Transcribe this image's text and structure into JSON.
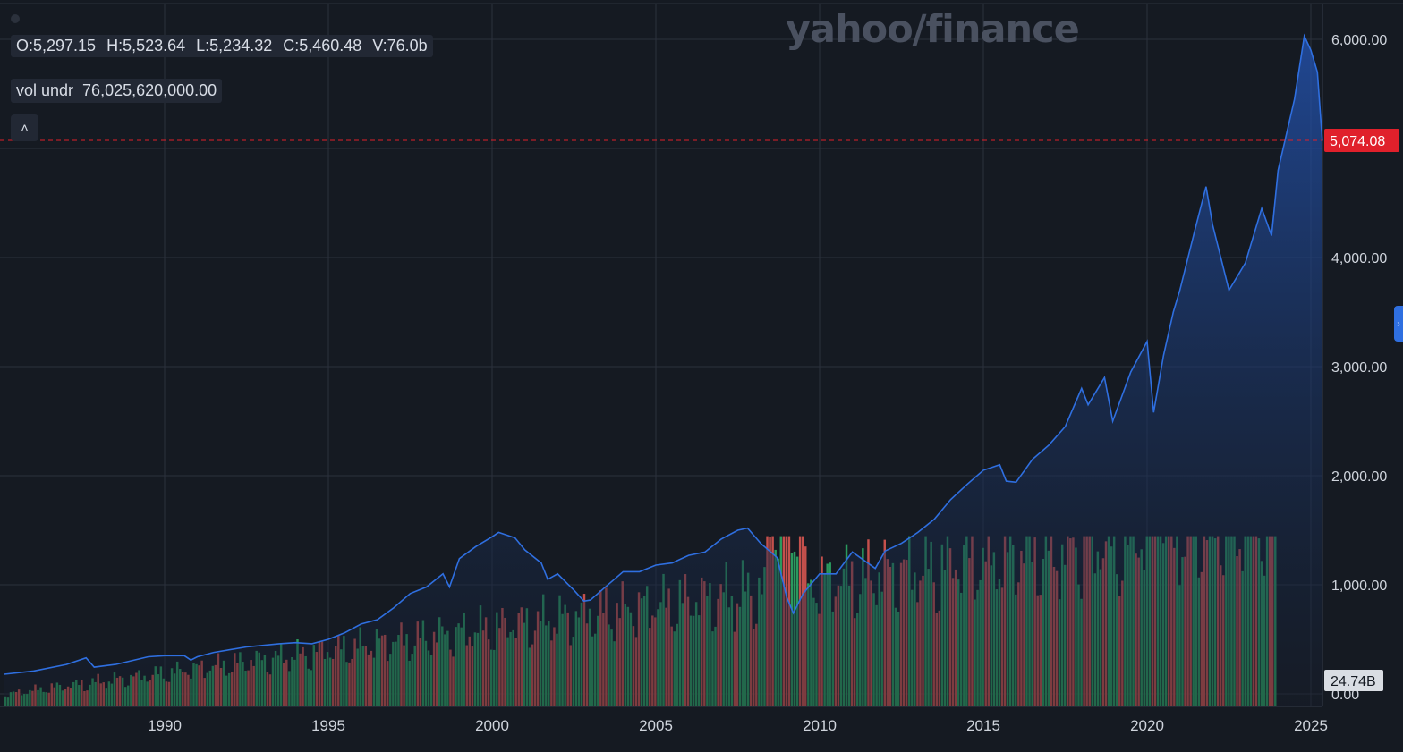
{
  "brand": {
    "logo_text": "yahoo/finance"
  },
  "ohlc": {
    "open": "O:5,297.15",
    "high": "H:5,523.64",
    "low": "L:5,234.32",
    "close": "C:5,460.48",
    "volume": "V:76.0b"
  },
  "volume_under": {
    "label": "vol undr",
    "value": "76,025,620,000.00"
  },
  "controls": {
    "collapse_icon": "chevron-up-icon",
    "collapse_glyph": "˄",
    "side_tab_icon": "chevron-right-icon",
    "side_tab_glyph": "›"
  },
  "colors": {
    "background": "#151a22",
    "line": "#2f6fe0",
    "area": "#1d3c78",
    "vol_up": "#2a9a5e",
    "vol_down": "#c5504c",
    "price_marker": "#e0202b",
    "volume_marker": "#d9dde3",
    "grid": "#2b313c",
    "axis_text": "#cfd4dc"
  },
  "chart_data": {
    "type": "area",
    "title": "",
    "xlabel": "",
    "ylabel": "",
    "x_ticks": [
      "1990",
      "1995",
      "2000",
      "2005",
      "2010",
      "2015",
      "2020",
      "2025"
    ],
    "y_ticks": [
      "0.00",
      "1,000.00",
      "2,000.00",
      "3,000.00",
      "4,000.00",
      "6,000.00"
    ],
    "xlim": [
      1985.1,
      2025.35
    ],
    "ylim": [
      0,
      6150
    ],
    "grid": true,
    "current_price_label": "5,074.08",
    "current_price": 5074.08,
    "volume_axis_label": "24.74B",
    "series": [
      {
        "name": "",
        "x": [
          1985.1,
          1986.0,
          1987.0,
          1987.6,
          1987.85,
          1988.5,
          1989.5,
          1990.0,
          1990.6,
          1990.8,
          1991.0,
          1991.5,
          1992.5,
          1993.5,
          1994.0,
          1994.5,
          1995.0,
          1995.5,
          1996.0,
          1996.5,
          1997.0,
          1997.5,
          1998.0,
          1998.5,
          1998.7,
          1999.0,
          1999.5,
          2000.0,
          2000.2,
          2000.7,
          2001.0,
          2001.5,
          2001.7,
          2002.0,
          2002.5,
          2002.8,
          2003.0,
          2003.5,
          2004.0,
          2004.5,
          2005.0,
          2005.5,
          2006.0,
          2006.5,
          2007.0,
          2007.5,
          2007.8,
          2008.2,
          2008.7,
          2009.0,
          2009.2,
          2009.5,
          2010.0,
          2010.5,
          2011.0,
          2011.7,
          2012.0,
          2012.5,
          2013.0,
          2013.5,
          2014.0,
          2014.5,
          2015.0,
          2015.5,
          2015.7,
          2016.0,
          2016.5,
          2017.0,
          2017.5,
          2018.0,
          2018.2,
          2018.7,
          2018.95,
          2019.5,
          2020.0,
          2020.2,
          2020.5,
          2020.8,
          2021.0,
          2021.5,
          2021.8,
          2022.0,
          2022.5,
          2022.8,
          2023.0,
          2023.5,
          2023.8,
          2024.0,
          2024.5,
          2024.8,
          2025.0,
          2025.2,
          2025.35
        ],
        "y": [
          180,
          210,
          270,
          330,
          245,
          270,
          340,
          350,
          350,
          310,
          340,
          380,
          430,
          460,
          470,
          460,
          500,
          560,
          640,
          680,
          790,
          920,
          980,
          1100,
          980,
          1240,
          1350,
          1440,
          1480,
          1430,
          1320,
          1200,
          1050,
          1100,
          950,
          850,
          860,
          990,
          1120,
          1120,
          1180,
          1200,
          1270,
          1300,
          1420,
          1500,
          1520,
          1380,
          1250,
          880,
          740,
          920,
          1100,
          1100,
          1300,
          1150,
          1310,
          1380,
          1480,
          1600,
          1780,
          1920,
          2050,
          2100,
          1950,
          1940,
          2150,
          2280,
          2450,
          2800,
          2650,
          2900,
          2500,
          2950,
          3230,
          2580,
          3100,
          3500,
          3700,
          4300,
          4650,
          4300,
          3700,
          3850,
          3950,
          4450,
          4200,
          4800,
          5450,
          6030,
          5900,
          5700,
          5070
        ]
      }
    ],
    "volume": {
      "unit": "B",
      "x_start": 1985.1,
      "x_step": 0.0834,
      "values": [
        1.6,
        1.6,
        1.7,
        1.7,
        1.8,
        1.8,
        1.9,
        1.9,
        2.0,
        2.1,
        2.1,
        2.2,
        2.2,
        2.3,
        2.3,
        2.4,
        2.4,
        2.5,
        2.5,
        2.6,
        2.6,
        2.6,
        2.7,
        2.7,
        2.8,
        2.8,
        2.9,
        2.9,
        3.0,
        3.0,
        3.1,
        3.1,
        3.2,
        3.2,
        3.3,
        3.3,
        3.4,
        3.4,
        3.4,
        3.5,
        3.5,
        3.6,
        3.6,
        3.7,
        3.7,
        3.8,
        3.8,
        3.9,
        3.9,
        3.9,
        4.0,
        4.0,
        4.1,
        4.1,
        4.2,
        4.2,
        4.3,
        4.3,
        4.4,
        4.4,
        4.5,
        4.5,
        4.6,
        4.6,
        4.7,
        4.7,
        4.8,
        4.8,
        4.9,
        4.9,
        5.0,
        5.0,
        5.1,
        5.1,
        5.2,
        5.2,
        5.3,
        5.3,
        5.4,
        5.4,
        5.5,
        5.5,
        5.6,
        5.6,
        5.7,
        5.7,
        5.8,
        5.8,
        5.9,
        5.9,
        6.0,
        6.0,
        6.1,
        6.1,
        6.2,
        6.2,
        6.3,
        6.3,
        6.4,
        6.4,
        6.5,
        6.5,
        6.6,
        6.6,
        6.7,
        6.7,
        6.8,
        6.8,
        6.9,
        6.9,
        7.0,
        7.0,
        7.1,
        7.1,
        7.2,
        7.2,
        7.3,
        7.3,
        7.4,
        7.4,
        7.5,
        7.5,
        7.6,
        7.6,
        7.7,
        7.7,
        7.8,
        7.8,
        7.9,
        7.9,
        8.0,
        8.0,
        8.1,
        8.1,
        8.2,
        8.2,
        8.3,
        8.3,
        8.4,
        8.4,
        8.5,
        8.5,
        8.6,
        8.6,
        8.7,
        8.7,
        8.8,
        8.8,
        8.9,
        8.9,
        9.0,
        9.0,
        9.1,
        9.1,
        9.2,
        9.2,
        9.3,
        9.3,
        9.4,
        9.4,
        9.5,
        9.5,
        9.6,
        9.6,
        9.7,
        9.7,
        9.8,
        9.8,
        9.9,
        9.9,
        10.0,
        10.0,
        10.1,
        10.1,
        10.2,
        10.2,
        10.3,
        10.3,
        10.4,
        10.4,
        10.5,
        10.5,
        10.6,
        10.6,
        10.7,
        10.7,
        10.8,
        10.8,
        10.9,
        10.9,
        11.0,
        11.0,
        11.1,
        11.1,
        11.2,
        11.2,
        11.3,
        11.3,
        11.4,
        11.4,
        11.5,
        11.5,
        11.6,
        11.6,
        11.7,
        11.7,
        11.8,
        11.8,
        11.9,
        11.9,
        12.0,
        12.0,
        12.1,
        12.1,
        12.2,
        12.2,
        12.3,
        12.3,
        12.4,
        12.4,
        12.5,
        12.5,
        12.6,
        12.6,
        12.7,
        12.7,
        12.8,
        12.8,
        12.9,
        12.9,
        13.0,
        13.0,
        13.1,
        13.1,
        13.2,
        13.2,
        13.3,
        13.3,
        13.4,
        13.4,
        13.5,
        13.5,
        13.6,
        13.6,
        13.7,
        13.7,
        13.8,
        13.8,
        13.9,
        13.9,
        14.0,
        14.0,
        14.1,
        14.1,
        14.2,
        14.2,
        14.3,
        14.3,
        14.4,
        14.4,
        14.5,
        14.5,
        14.6,
        14.6,
        14.7,
        14.7,
        14.8,
        14.8,
        14.9,
        14.9,
        15.0,
        15.0,
        15.1,
        15.1,
        15.2,
        15.2,
        15.3,
        15.3,
        15.4,
        15.4,
        15.5,
        15.5,
        15.6,
        15.6,
        15.7,
        15.7,
        15.8,
        15.8,
        15.9,
        15.9,
        16.0,
        16.0,
        16.1,
        16.1,
        16.2,
        16.2,
        16.3,
        16.3,
        16.4,
        16.4,
        16.5,
        16.5,
        16.6,
        16.6,
        16.7,
        16.7,
        16.8,
        16.8,
        16.9,
        16.9,
        17.0,
        17.0,
        17.1,
        17.1,
        17.2,
        17.2,
        17.3,
        17.3,
        17.4,
        17.4,
        17.5,
        17.5,
        17.6,
        17.6,
        17.7,
        17.7,
        17.8,
        17.8,
        17.9,
        17.9,
        18.0,
        18.0,
        18.1,
        18.1,
        18.2,
        18.2,
        18.3,
        18.3,
        18.4,
        18.4,
        18.5,
        18.5,
        18.6,
        18.6,
        18.7,
        18.7,
        18.8,
        18.8,
        18.9,
        18.9,
        19.0,
        19.0,
        19.1,
        19.1,
        19.2,
        19.2,
        19.3,
        19.3,
        19.4,
        19.4,
        19.5,
        19.5,
        19.6,
        19.6,
        19.7,
        19.7,
        19.8,
        19.8,
        19.9,
        19.9,
        20.0,
        20.0,
        20.1,
        20.1,
        20.2,
        20.2,
        20.3,
        20.3,
        20.4,
        20.4,
        20.5,
        20.5,
        20.6,
        20.6,
        20.7,
        20.7,
        20.8,
        20.8,
        20.9,
        20.9,
        21.0,
        21.0,
        21.1,
        21.1,
        21.2,
        21.2,
        21.3,
        21.3,
        21.4,
        21.4,
        21.5,
        21.5,
        21.6,
        21.6,
        21.7,
        21.7,
        21.8,
        21.8,
        21.9,
        21.9,
        22.0,
        22.0,
        22.1,
        22.1,
        22.2,
        22.2,
        22.3,
        22.3,
        22.4,
        22.4,
        22.5,
        22.5,
        22.6,
        22.6,
        22.7,
        22.7,
        22.8,
        22.8,
        22.9,
        22.9,
        23.0,
        23.0,
        23.1,
        23.1,
        23.2,
        23.2,
        23.3,
        23.3,
        23.4,
        23.4,
        23.5,
        23.5,
        23.6,
        23.6,
        23.7,
        23.7,
        23.8,
        23.8,
        23.9,
        23.9,
        24.0,
        24.0,
        24.1,
        24.1,
        24.2,
        24.2,
        24.3,
        24.3,
        24.4,
        24.4,
        24.5,
        24.5,
        24.6,
        24.6,
        24.7,
        24.74
      ]
    }
  }
}
